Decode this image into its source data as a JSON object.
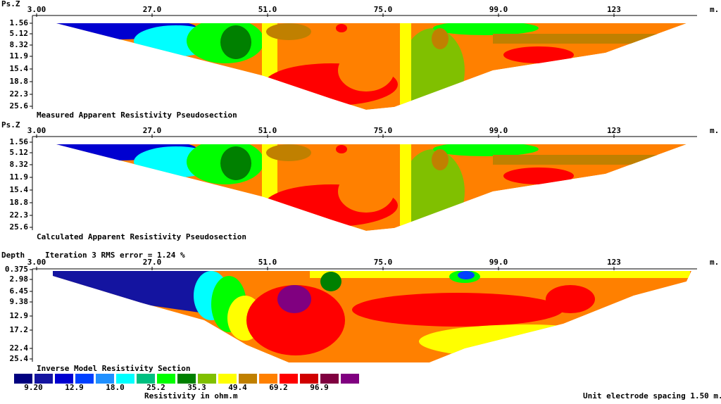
{
  "panels": [
    {
      "axis_label": "Ps.Z",
      "x_ticks": [
        "3.00",
        "27.0",
        "51.0",
        "75.0",
        "99.0",
        "123"
      ],
      "x_unit": "m.",
      "y_ticks": [
        "1.56",
        "5.12",
        "8.32",
        "11.9",
        "15.4",
        "18.8",
        "22.3",
        "25.6"
      ],
      "caption": "Measured Apparent Resistivity Pseudosection"
    },
    {
      "axis_label": "Ps.Z",
      "x_ticks": [
        "3.00",
        "27.0",
        "51.0",
        "75.0",
        "99.0",
        "123"
      ],
      "x_unit": "m.",
      "y_ticks": [
        "1.56",
        "5.12",
        "8.32",
        "11.9",
        "15.4",
        "18.8",
        "22.3",
        "25.6"
      ],
      "caption": "Calculated Apparent Resistivity Pseudosection"
    },
    {
      "axis_label": "Depth",
      "header": "Iteration 3 RMS error = 1.24 %",
      "x_ticks": [
        "3.00",
        "27.0",
        "51.0",
        "75.0",
        "99.0",
        "123"
      ],
      "x_unit": "m.",
      "y_ticks": [
        "0.375",
        "2.98",
        "6.45",
        "9.38",
        "12.9",
        "17.2",
        "22.4",
        "25.4"
      ],
      "caption": "Inverse Model Resistivity Section"
    }
  ],
  "legend": {
    "colors": [
      "#00007f",
      "#1414a0",
      "#0000d0",
      "#0040ff",
      "#2090ff",
      "#00ffff",
      "#00c080",
      "#00ff00",
      "#008000",
      "#80c000",
      "#ffff00",
      "#c08000",
      "#ff8000",
      "#ff0000",
      "#d00000",
      "#800040",
      "#800080"
    ],
    "labels": [
      "9.20",
      "12.9",
      "18.0",
      "25.2",
      "35.3",
      "49.4",
      "69.2",
      "96.9"
    ],
    "title": "Resistivity in ohm.m"
  },
  "footer": "Unit electrode spacing 1.50 m."
}
